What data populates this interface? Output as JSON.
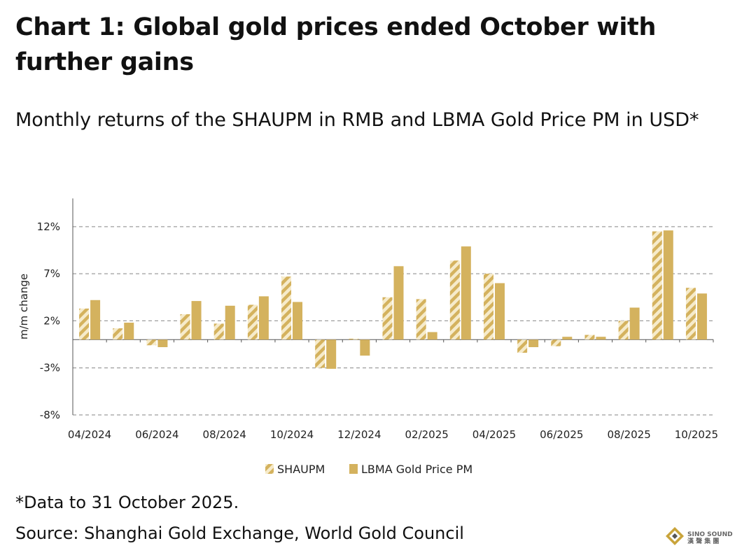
{
  "header": {
    "title": "Chart 1: Global gold prices ended October with further gains",
    "subtitle": "Monthly returns of the SHAUPM in RMB and LBMA Gold Price PM in USD*"
  },
  "footer": {
    "footnote": "*Data to 31 October 2025.",
    "source": "Source: Shanghai Gold Exchange, World Gold Council"
  },
  "watermark": {
    "text": "SINO SOUND",
    "subtext": "漢 聲 集 團"
  },
  "colors": {
    "gold": "#D4B25E",
    "stripe_light": "#F6EBCB",
    "grid": "#9E9E9E",
    "axis": "#555555"
  },
  "chart_data": {
    "type": "bar",
    "ylabel": "m/m change",
    "xlabel": "",
    "ylim": [
      -8,
      15
    ],
    "yticks": [
      12,
      7,
      2,
      -3,
      -8
    ],
    "ytick_labels": [
      "12%",
      "7%",
      "2%",
      "-3%",
      "-8%"
    ],
    "grid": "horizontal dashed",
    "legend_position": "bottom-center",
    "categories": [
      "04/2024",
      "05/2024",
      "06/2024",
      "07/2024",
      "08/2024",
      "09/2024",
      "10/2024",
      "11/2024",
      "12/2024",
      "01/2025",
      "02/2025",
      "03/2025",
      "04/2025",
      "05/2025",
      "06/2025",
      "07/2025",
      "08/2025",
      "09/2025",
      "10/2025"
    ],
    "xtick_labels": [
      "04/2024",
      "",
      "06/2024",
      "",
      "08/2024",
      "",
      "10/2024",
      "",
      "12/2024",
      "",
      "02/2025",
      "",
      "04/2025",
      "",
      "06/2025",
      "",
      "08/2025",
      "",
      "10/2025"
    ],
    "series": [
      {
        "name": "SHAUPM",
        "style": "hatched",
        "values": [
          3.3,
          1.2,
          -0.6,
          2.7,
          1.7,
          3.7,
          6.7,
          -3.0,
          0.1,
          4.5,
          4.3,
          8.4,
          7.0,
          -1.4,
          -0.7,
          0.5,
          2.0,
          11.5,
          5.5
        ]
      },
      {
        "name": "LBMA Gold Price PM",
        "style": "solid",
        "values": [
          4.2,
          1.8,
          -0.8,
          4.1,
          3.6,
          4.6,
          4.0,
          -3.1,
          -1.7,
          7.8,
          0.8,
          9.9,
          6.0,
          -0.8,
          0.3,
          0.3,
          3.4,
          11.6,
          4.9
        ]
      }
    ]
  }
}
